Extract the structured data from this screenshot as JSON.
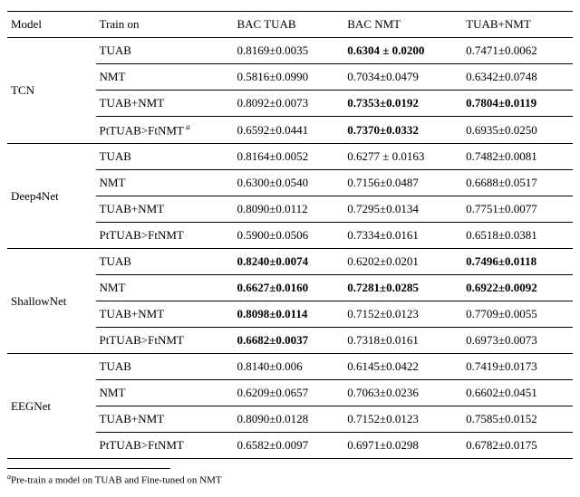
{
  "columns": [
    "Model",
    "Train on",
    "BAC TUAB",
    "BAC NMT",
    "TUAB+NMT"
  ],
  "footnote_mark": "a",
  "footnote_text": "Pre-train a model on TUAB and Fine-tuned on NMT",
  "groups": [
    {
      "model": "TCN",
      "rows": [
        {
          "train": "TUAB",
          "c1": "0.8169±0.0035",
          "c1b": false,
          "c2": "0.6304 ± 0.0200",
          "c2b": true,
          "c3": "0.7471±0.0062",
          "c3b": false,
          "fn": false
        },
        {
          "train": "NMT",
          "c1": "0.5816±0.0990",
          "c1b": false,
          "c2": "0.7034±0.0479",
          "c2b": false,
          "c3": "0.6342±0.0748",
          "c3b": false,
          "fn": false
        },
        {
          "train": "TUAB+NMT",
          "c1": "0.8092±0.0073",
          "c1b": false,
          "c2": "0.7353±0.0192",
          "c2b": true,
          "c3": "0.7804±0.0119",
          "c3b": true,
          "fn": false
        },
        {
          "train": "PtTUAB>FtNMT",
          "c1": "0.6592±0.0441",
          "c1b": false,
          "c2": "0.7370±0.0332",
          "c2b": true,
          "c3": "0.6935±0.0250",
          "c3b": false,
          "fn": true
        }
      ]
    },
    {
      "model": "Deep4Net",
      "rows": [
        {
          "train": "TUAB",
          "c1": "0.8164±0.0052",
          "c1b": false,
          "c2": "0.6277 ± 0.0163",
          "c2b": false,
          "c3": "0.7482±0.0081",
          "c3b": false,
          "fn": false
        },
        {
          "train": "NMT",
          "c1": "0.6300±0.0540",
          "c1b": false,
          "c2": "0.7156±0.0487",
          "c2b": false,
          "c3": "0.6688±0.0517",
          "c3b": false,
          "fn": false
        },
        {
          "train": "TUAB+NMT",
          "c1": "0.8090±0.0112",
          "c1b": false,
          "c2": "0.7295±0.0134",
          "c2b": false,
          "c3": "0.7751±0.0077",
          "c3b": false,
          "fn": false
        },
        {
          "train": "PtTUAB>FtNMT",
          "c1": "0.5900±0.0506",
          "c1b": false,
          "c2": "0.7334±0.0161",
          "c2b": false,
          "c3": "0.6518±0.0381",
          "c3b": false,
          "fn": false
        }
      ]
    },
    {
      "model": "ShallowNet",
      "rows": [
        {
          "train": "TUAB",
          "c1": "0.8240±0.0074",
          "c1b": true,
          "c2": "0.6202±0.0201",
          "c2b": false,
          "c3": "0.7496±0.0118",
          "c3b": true,
          "fn": false
        },
        {
          "train": "NMT",
          "c1": "0.6627±0.0160",
          "c1b": true,
          "c2": "0.7281±0.0285",
          "c2b": true,
          "c3": "0.6922±0.0092",
          "c3b": true,
          "fn": false
        },
        {
          "train": "TUAB+NMT",
          "c1": "0.8098±0.0114",
          "c1b": true,
          "c2": "0.7152±0.0123",
          "c2b": false,
          "c3": "0.7709±0.0055",
          "c3b": false,
          "fn": false
        },
        {
          "train": "PtTUAB>FtNMT",
          "c1": "0.6682±0.0037",
          "c1b": true,
          "c2": "0.7318±0.0161",
          "c2b": false,
          "c3": "0.6973±0.0073",
          "c3b": false,
          "fn": false
        }
      ]
    },
    {
      "model": "EEGNet",
      "rows": [
        {
          "train": "TUAB",
          "c1": "0.8140±0.006",
          "c1b": false,
          "c2": "0.6145±0.0422",
          "c2b": false,
          "c3": "0.7419±0.0173",
          "c3b": false,
          "fn": false
        },
        {
          "train": "NMT",
          "c1": "0.6209±0.0657",
          "c1b": false,
          "c2": "0.7063±0.0236",
          "c2b": false,
          "c3": "0.6602±0.0451",
          "c3b": false,
          "fn": false
        },
        {
          "train": "TUAB+NMT",
          "c1": "0.8090±0.0128",
          "c1b": false,
          "c2": "0.7152±0.0123",
          "c2b": false,
          "c3": "0.7585±0.0152",
          "c3b": false,
          "fn": false
        },
        {
          "train": "PtTUAB>FtNMT",
          "c1": "0.6582±0.0097",
          "c1b": false,
          "c2": "0.6971±0.0298",
          "c2b": false,
          "c3": "0.6782±0.0175",
          "c3b": false,
          "fn": false
        }
      ]
    }
  ]
}
